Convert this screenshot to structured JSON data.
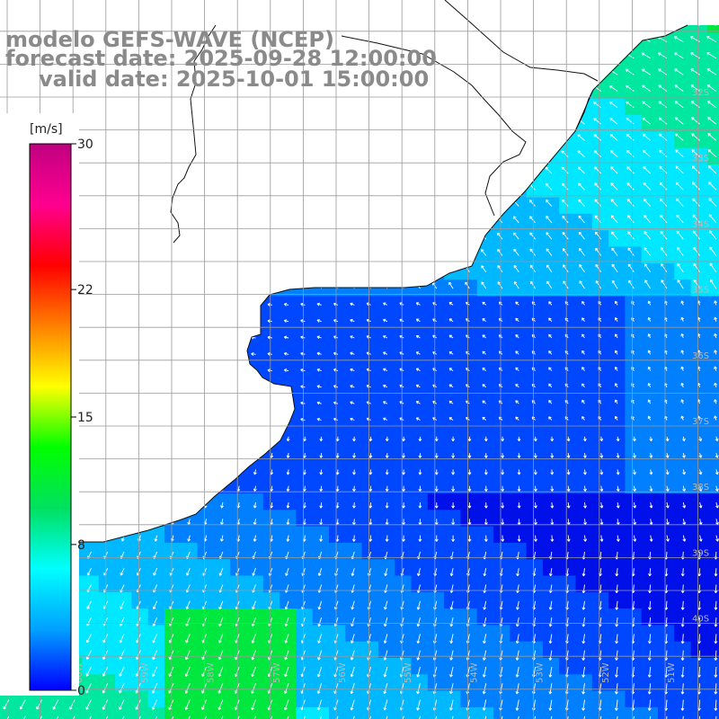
{
  "title": {
    "line1": "modelo GEFS-WAVE (NCEP)",
    "line2": "forecast date: 2025-09-28 12:00:00",
    "line3": "valid date: 2025-10-01 15:00:00"
  },
  "colorbar": {
    "unit": "[m/s]",
    "ticks": [
      "30",
      "22",
      "15",
      "8",
      "0"
    ],
    "tick_values": [
      30,
      22,
      15,
      8,
      0
    ],
    "min": 0,
    "max": 30,
    "colors": [
      "#0000ff",
      "#00a0ff",
      "#00ffff",
      "#00e060",
      "#00ff00",
      "#ffff00",
      "#ff8000",
      "#ff0000",
      "#ff0090",
      "#c00080"
    ]
  },
  "latitude_labels": [
    "32S",
    "33S",
    "34S",
    "35S",
    "36S",
    "37S",
    "38S",
    "39S",
    "40S"
  ],
  "latitude_values": [
    -32,
    -33,
    -34,
    -35,
    -36,
    -37,
    -38,
    -39,
    -40
  ],
  "longitude_labels": [
    "61W",
    "60W",
    "59W",
    "58W",
    "57W",
    "56W",
    "55W",
    "54W",
    "53W",
    "52W",
    "51W"
  ],
  "longitude_values": [
    -61,
    -60,
    -59,
    -58,
    -57,
    -56,
    -55,
    -54,
    -53,
    -52,
    -51
  ],
  "field": {
    "variable": "wind speed",
    "unit": "m/s",
    "wind_colors": [
      "#0010e8",
      "#0048ff",
      "#0080ff",
      "#00b8ff",
      "#00e8ff",
      "#00e8a0",
      "#00e840"
    ]
  }
}
